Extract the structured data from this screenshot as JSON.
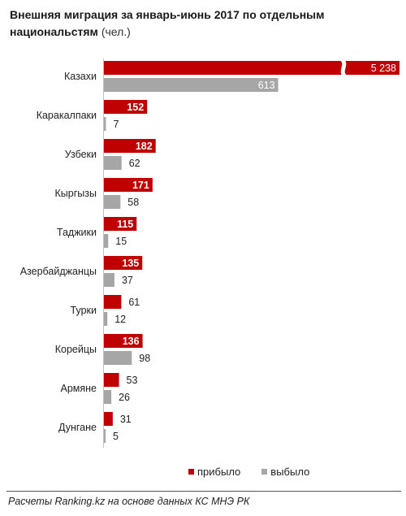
{
  "title": {
    "main": "Внешняя миграция  за январь-июнь  2017 по отдельным  национальстям",
    "unit": "(чел.)"
  },
  "colors": {
    "arrived": "#c00000",
    "departed": "#a6a6a6"
  },
  "chart_data": {
    "type": "bar",
    "orientation": "horizontal",
    "categories": [
      "Казахи",
      "Каракалпаки",
      "Узбеки",
      "Кыргызы",
      "Таджики",
      "Азербайджанцы",
      "Турки",
      "Корейцы",
      "Армяне",
      "Дунгане"
    ],
    "series": [
      {
        "name": "прибыло",
        "values": [
          5238,
          152,
          182,
          171,
          115,
          135,
          61,
          136,
          53,
          31
        ]
      },
      {
        "name": "выбыло",
        "values": [
          613,
          7,
          62,
          58,
          15,
          37,
          12,
          98,
          26,
          5
        ]
      }
    ],
    "data_labels": {
      "прибыло": [
        "5 238",
        "152",
        "182",
        "171",
        "115",
        "135",
        "61",
        "136",
        "53",
        "31"
      ],
      "выбыло": [
        "613",
        "7",
        "62",
        "58",
        "15",
        "37",
        "12",
        "98",
        "26",
        "5"
      ]
    },
    "axis_break": {
      "category": "Казахи",
      "series": "прибыло"
    },
    "legend_position": "bottom",
    "grid": false
  },
  "legend": {
    "arrived": "прибыло",
    "departed": "выбыло"
  },
  "footer": "Расчеты Ranking.kz на основе данных КС МНЭ РК"
}
